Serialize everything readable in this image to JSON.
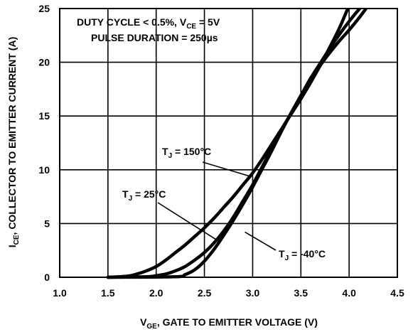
{
  "chart_data": {
    "type": "line",
    "title": "",
    "xlabel": {
      "main": "V",
      "sub": "GE",
      "rest": ", GATE TO EMITTER VOLTAGE (V)"
    },
    "ylabel": {
      "main": "I",
      "sub": "CE",
      "rest": ", COLLECTOR TO EMITTER CURRENT (A)"
    },
    "xlim": [
      1.0,
      4.5
    ],
    "ylim": [
      0,
      25
    ],
    "xticks": [
      "1.0",
      "1.5",
      "2.0",
      "2.5",
      "3.0",
      "3.5",
      "4.0",
      "4.5"
    ],
    "yticks": [
      "0",
      "5",
      "10",
      "15",
      "20",
      "25"
    ],
    "grid": true,
    "conditions": {
      "line1_main": "DUTY CYCLE < 0.5%, V",
      "line1_sub": "CE",
      "line1_rest": " = 5V",
      "line2": "PULSE DURATION = 250µs"
    },
    "series": [
      {
        "name": "T_J = 150°C",
        "label": {
          "main": "T",
          "sub": "J",
          "rest": " = 150°C"
        },
        "x": [
          1.5,
          1.7,
          1.8,
          1.9,
          2.0,
          2.1,
          2.2,
          2.3,
          2.4,
          2.5,
          2.6,
          2.7,
          2.8,
          2.9,
          3.0,
          3.1,
          3.2,
          3.3,
          3.4,
          3.5,
          3.6,
          3.7,
          3.8,
          3.9,
          4.0
        ],
        "y": [
          0,
          0.1,
          0.3,
          0.6,
          1.0,
          1.6,
          2.3,
          3.0,
          3.8,
          4.6,
          5.5,
          6.5,
          7.5,
          8.6,
          9.7,
          11.0,
          12.4,
          13.8,
          15.2,
          16.6,
          18.1,
          19.7,
          21.4,
          23.2,
          25.3
        ]
      },
      {
        "name": "T_J = 25°C",
        "label": {
          "main": "T",
          "sub": "J",
          "rest": " = 25°C"
        },
        "x": [
          1.5,
          1.9,
          2.0,
          2.1,
          2.2,
          2.3,
          2.4,
          2.5,
          2.6,
          2.7,
          2.8,
          2.9,
          3.0,
          3.1,
          3.2,
          3.3,
          3.4,
          3.5,
          3.6,
          3.7,
          3.8,
          3.9,
          4.0,
          4.1,
          4.15
        ],
        "y": [
          0,
          0.05,
          0.15,
          0.3,
          0.6,
          1.0,
          1.6,
          2.3,
          3.2,
          4.3,
          5.6,
          7.1,
          8.6,
          10.3,
          12.0,
          13.7,
          15.3,
          16.9,
          18.5,
          19.9,
          21.3,
          22.6,
          23.8,
          24.9,
          25.3
        ]
      },
      {
        "name": "T_J = -40°C",
        "label": {
          "main": "T",
          "sub": "J",
          "rest": " = -40°C"
        },
        "x": [
          1.5,
          2.2,
          2.3,
          2.4,
          2.5,
          2.6,
          2.7,
          2.8,
          2.9,
          3.0,
          3.1,
          3.2,
          3.3,
          3.4,
          3.5,
          3.6,
          3.7,
          3.8,
          3.9,
          4.0,
          4.1,
          4.2
        ],
        "y": [
          0,
          0.05,
          0.25,
          0.7,
          1.5,
          2.6,
          3.9,
          5.3,
          6.8,
          8.4,
          10.1,
          11.8,
          13.6,
          15.3,
          16.9,
          18.4,
          19.7,
          20.9,
          22.0,
          23.0,
          24.1,
          25.3
        ]
      }
    ]
  }
}
